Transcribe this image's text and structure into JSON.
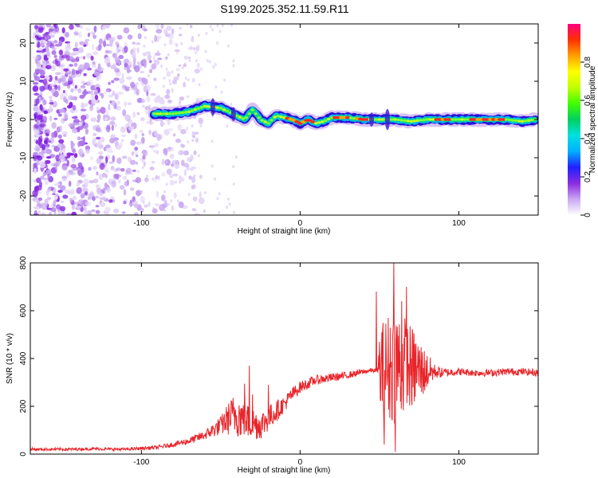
{
  "title": "S199.2025.352.11.59.R11",
  "chart_data": [
    {
      "type": "heatmap",
      "xlabel": "Height of straight line (km)",
      "ylabel": "Frequency (Hz)",
      "xlim": [
        -170,
        150
      ],
      "ylim": [
        -25,
        25
      ],
      "xticks": [
        -100,
        0,
        100
      ],
      "yticks": [
        -20,
        -10,
        0,
        10,
        20
      ],
      "grid": false,
      "colorbar": {
        "label": "Normalized spectral amplitude",
        "range": [
          0,
          1
        ],
        "ticks": [
          0,
          0.2,
          0.4,
          0.6,
          0.8
        ],
        "colors": [
          "#ffffff",
          "#c9a7f0",
          "#8a2be2",
          "#2020ff",
          "#00b0ff",
          "#00e0e0",
          "#00d060",
          "#40ff00",
          "#c0ff00",
          "#ffff00",
          "#ffa000",
          "#ff3000",
          "#ff0080"
        ]
      },
      "ridge": {
        "start_x": -92,
        "end_x": 148,
        "points": [
          [
            -92,
            1.5
          ],
          [
            -80,
            1.5
          ],
          [
            -70,
            2
          ],
          [
            -60,
            3.5
          ],
          [
            -50,
            3
          ],
          [
            -40,
            1
          ],
          [
            -35,
            0
          ],
          [
            -30,
            2.5
          ],
          [
            -25,
            0
          ],
          [
            -20,
            -1
          ],
          [
            -15,
            1
          ],
          [
            -10,
            0.5
          ],
          [
            -5,
            0
          ],
          [
            0,
            -1
          ],
          [
            5,
            0
          ],
          [
            10,
            -1
          ],
          [
            15,
            -0.5
          ],
          [
            20,
            0.5
          ],
          [
            25,
            0.5
          ],
          [
            30,
            0.5
          ],
          [
            40,
            0
          ],
          [
            50,
            0
          ],
          [
            60,
            0
          ],
          [
            70,
            -0.5
          ],
          [
            80,
            0
          ],
          [
            90,
            0
          ],
          [
            100,
            0
          ],
          [
            110,
            0
          ],
          [
            120,
            0
          ],
          [
            130,
            0
          ],
          [
            140,
            -0.5
          ],
          [
            148,
            0
          ]
        ],
        "peak_bands": [
          [
            -8,
            8
          ],
          [
            22,
            30
          ],
          [
            35,
            42
          ],
          [
            85,
            95
          ],
          [
            108,
            128
          ]
        ]
      },
      "noise_region_x": [
        -170,
        -65
      ]
    },
    {
      "type": "line",
      "xlabel": "Height of straight line (km)",
      "ylabel": "SNR (10 * v/v)",
      "xlim": [
        -170,
        150
      ],
      "ylim": [
        0,
        800
      ],
      "xticks": [
        -100,
        0,
        100
      ],
      "yticks": [
        0,
        200,
        400,
        600,
        800
      ],
      "grid": false,
      "line_color": "#e8252a",
      "series": [
        {
          "x": [
            -170,
            -150,
            -130,
            -110,
            -90,
            -80,
            -70,
            -60,
            -50,
            -45,
            -40,
            -35,
            -30,
            -25,
            -20,
            -15,
            -10,
            -5,
            0,
            10,
            20,
            30,
            40,
            45,
            49,
            50,
            55,
            60,
            65,
            70,
            75,
            80,
            85,
            90,
            100,
            110,
            120,
            130,
            140,
            150
          ],
          "values": [
            20,
            20,
            22,
            20,
            28,
            40,
            55,
            80,
            120,
            150,
            170,
            140,
            130,
            120,
            150,
            180,
            210,
            250,
            280,
            310,
            320,
            330,
            345,
            350,
            350,
            340,
            360,
            380,
            370,
            360,
            350,
            345,
            345,
            340,
            345,
            340,
            340,
            345,
            345,
            340
          ],
          "noise_amplitude": [
            6,
            6,
            6,
            6,
            8,
            10,
            15,
            20,
            40,
            70,
            100,
            80,
            70,
            60,
            55,
            45,
            35,
            30,
            25,
            20,
            18,
            15,
            12,
            10,
            10,
            200,
            230,
            260,
            220,
            180,
            140,
            80,
            30,
            20,
            15,
            15,
            15,
            15,
            15,
            15
          ],
          "spikes": [
            [
              -32,
              370
            ],
            [
              -35,
              295
            ],
            [
              -30,
              250
            ],
            [
              -20,
              290
            ],
            [
              48,
              680
            ],
            [
              59,
              800
            ],
            [
              60,
              10
            ],
            [
              53,
              40
            ],
            [
              64,
              640
            ],
            [
              67,
              700
            ]
          ]
        }
      ]
    }
  ]
}
